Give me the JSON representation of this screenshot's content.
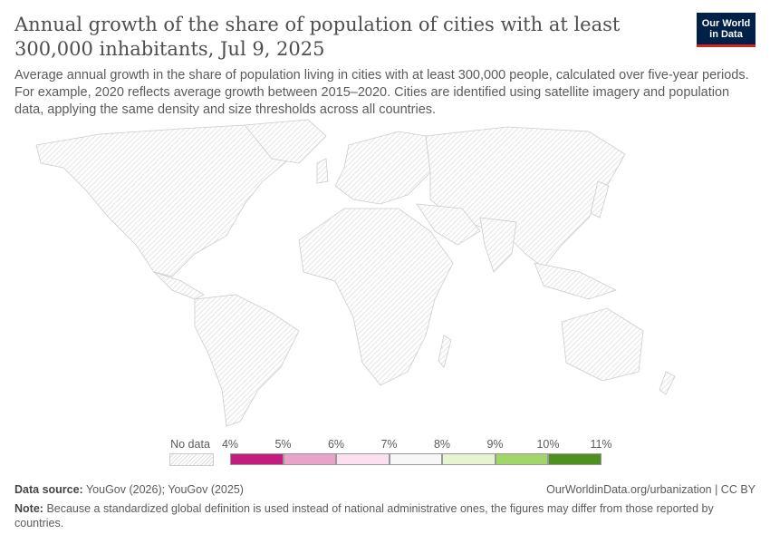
{
  "title": "Annual growth of the share of population of cities with at least 300,000 inhabitants, Jul 9, 2025",
  "logo": "Our World in Data",
  "subtitle": "Average annual growth in the share of population living in cities with at least 300,000 people, calculated over five-year periods. For example, 2020 reflects average growth between 2015–2020. Cities are identified using satellite imagery and population data, applying the same density and size thresholds across all countries.",
  "legend": {
    "no_data": "No data",
    "ticks": [
      "4%",
      "5%",
      "6%",
      "7%",
      "8%",
      "9%",
      "10%",
      "11%"
    ],
    "colors": [
      "#c51b7d",
      "#e9a3c9",
      "#fde0ef",
      "#f7f7f7",
      "#e6f5d0",
      "#a1d76a",
      "#4d9221"
    ],
    "no_data_pattern": "hatched-gray"
  },
  "map": {
    "all_countries": "No data"
  },
  "footer": {
    "source_label": "Data source:",
    "source": "YouGov (2026); YouGov (2025)",
    "url": "OurWorldinData.org/urbanization | CC BY",
    "note_label": "Note:",
    "note": "Because a standardized global definition is used instead of national administrative ones, the figures may differ from those reported by countries."
  }
}
